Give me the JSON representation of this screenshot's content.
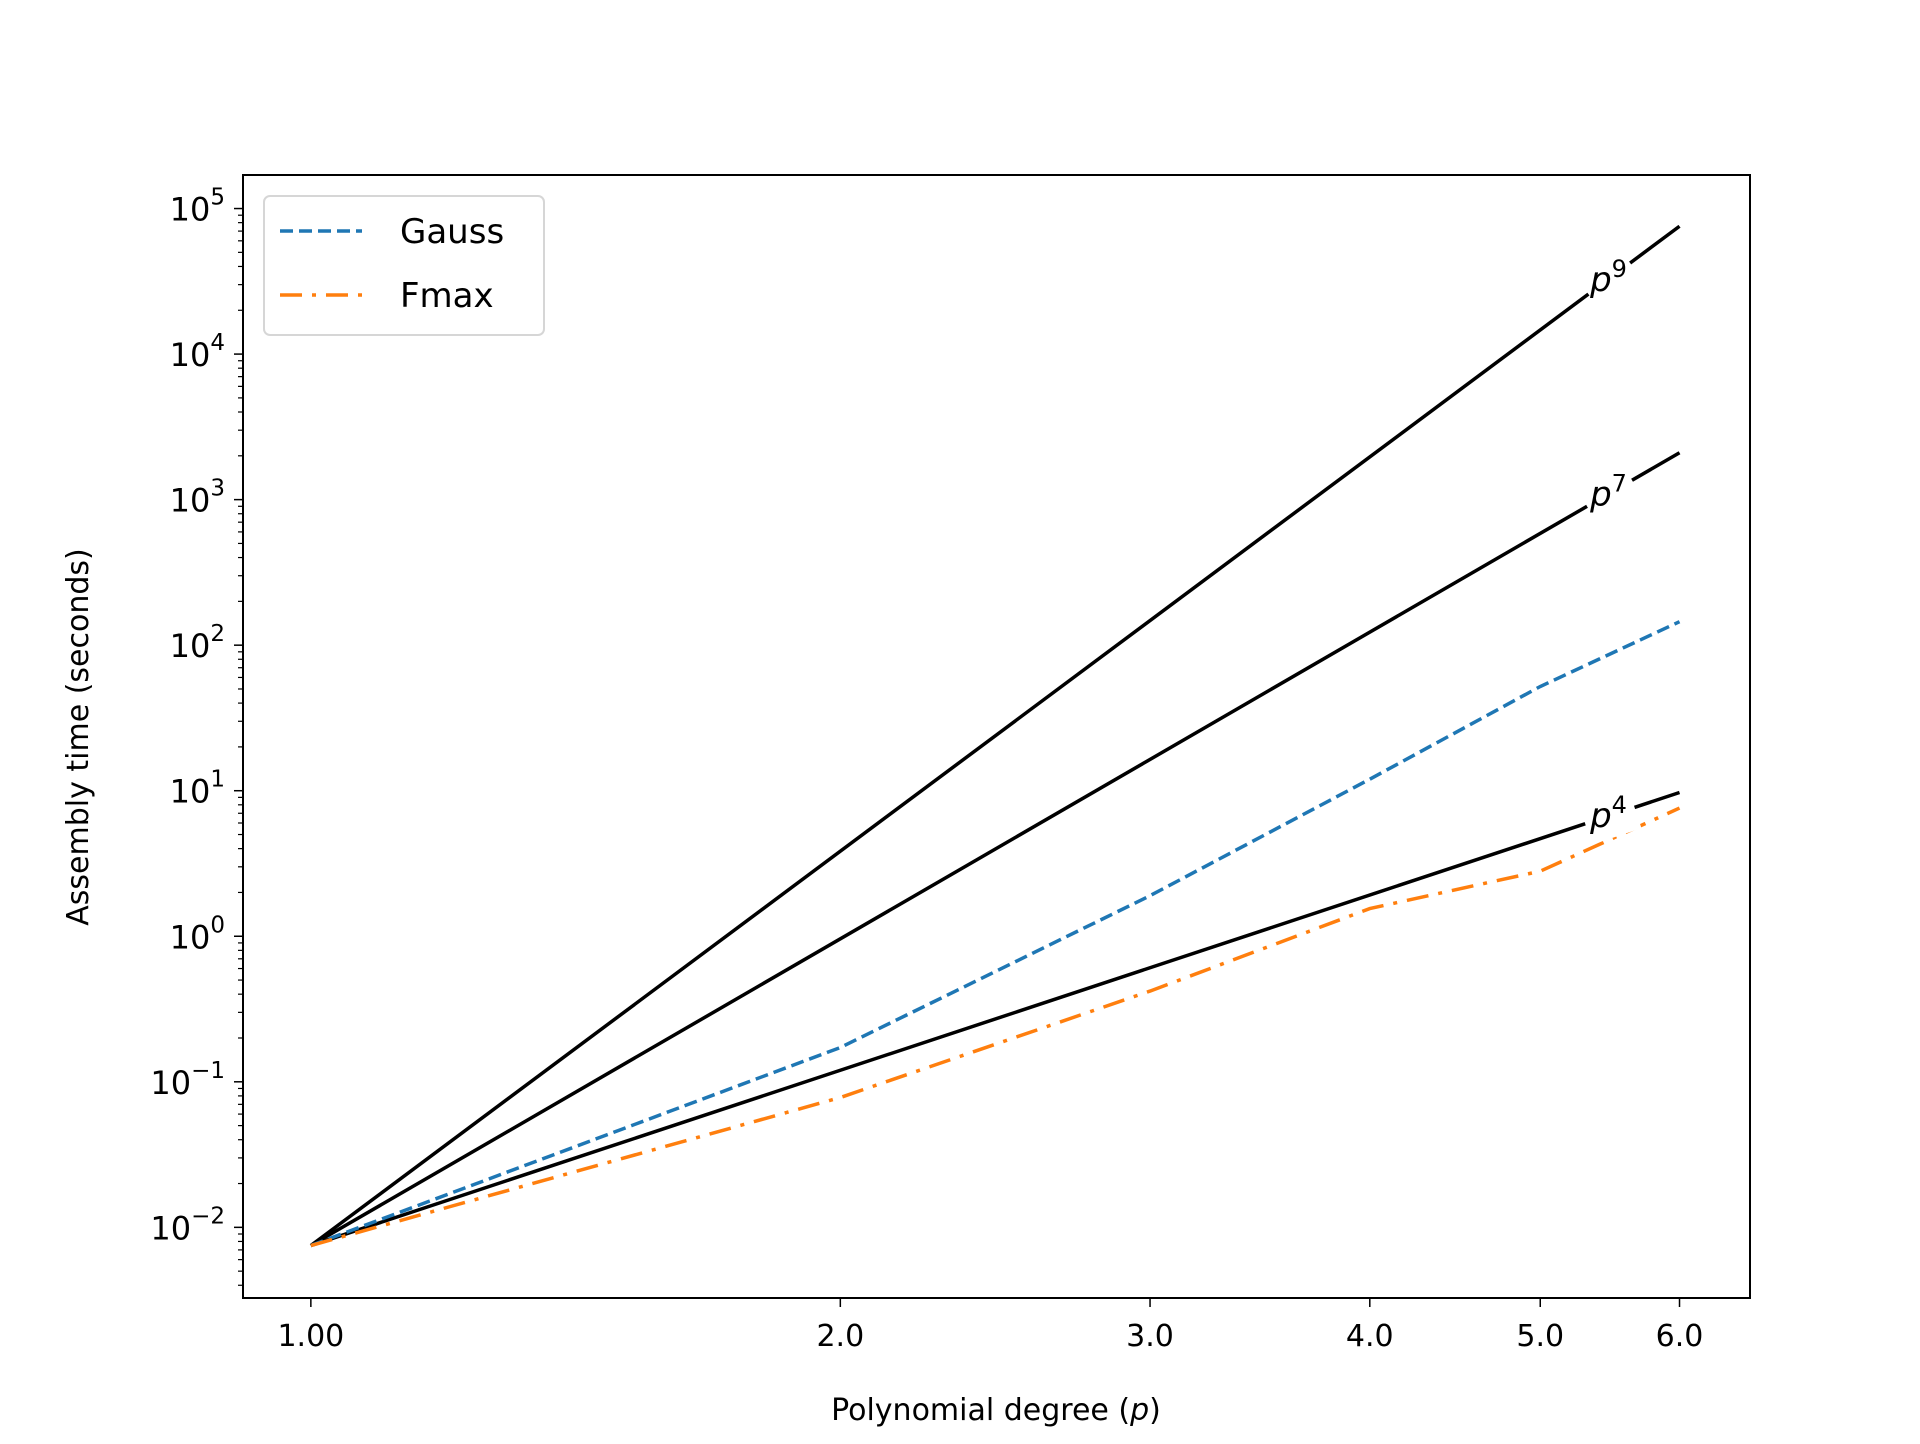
{
  "chart_data": {
    "type": "line",
    "title": "",
    "xlabel": "Polynomial degree (p)",
    "xlabel_prefix": "Polynomial degree (",
    "xlabel_var": "p",
    "xlabel_suffix": ")",
    "ylabel": "Assembly time (seconds)",
    "xscale": "log",
    "yscale": "log",
    "xlim": [
      0.915,
      6.58
    ],
    "ylim": [
      0.00327,
      170000
    ],
    "grid": false,
    "legend_placement": "top-left",
    "x_ticks": [
      {
        "value": 1,
        "label": "1.00"
      },
      {
        "value": 2,
        "label": "2.0"
      },
      {
        "value": 3,
        "label": "3.0"
      },
      {
        "value": 4,
        "label": "4.0"
      },
      {
        "value": 5,
        "label": "5.0"
      },
      {
        "value": 6,
        "label": "6.0"
      }
    ],
    "y_ticks": [
      {
        "exp": -2,
        "label": "10",
        "sup": "−2"
      },
      {
        "exp": -1,
        "label": "10",
        "sup": "−1"
      },
      {
        "exp": 0,
        "label": "10",
        "sup": "0"
      },
      {
        "exp": 1,
        "label": "10",
        "sup": "1"
      },
      {
        "exp": 2,
        "label": "10",
        "sup": "2"
      },
      {
        "exp": 3,
        "label": "10",
        "sup": "3"
      },
      {
        "exp": 4,
        "label": "10",
        "sup": "4"
      },
      {
        "exp": 5,
        "label": "10",
        "sup": "5"
      }
    ],
    "series": [
      {
        "name": "Gauss",
        "color": "#1f77b4",
        "style": "dashed",
        "in_legend": true,
        "x": [
          1,
          2,
          3,
          4,
          5,
          6
        ],
        "y": [
          0.0075,
          0.172,
          1.9,
          12,
          52,
          145
        ]
      },
      {
        "name": "Fmax",
        "color": "#ff7f0e",
        "style": "dashdot",
        "in_legend": true,
        "x": [
          1,
          2,
          3,
          4,
          5,
          6
        ],
        "y": [
          0.0075,
          0.078,
          0.42,
          1.55,
          2.8,
          7.6
        ]
      }
    ],
    "reference_lines": [
      {
        "name": "p^9",
        "base": "p",
        "power": "9",
        "exponent": 9,
        "coef": 0.0075,
        "color": "#000000",
        "label_at": 5.45
      },
      {
        "name": "p^7",
        "base": "p",
        "power": "7",
        "exponent": 7,
        "coef": 0.0075,
        "color": "#000000",
        "label_at": 5.45
      },
      {
        "name": "p^4",
        "base": "p",
        "power": "4",
        "exponent": 4,
        "coef": 0.0075,
        "color": "#000000",
        "label_at": 5.45
      }
    ]
  }
}
